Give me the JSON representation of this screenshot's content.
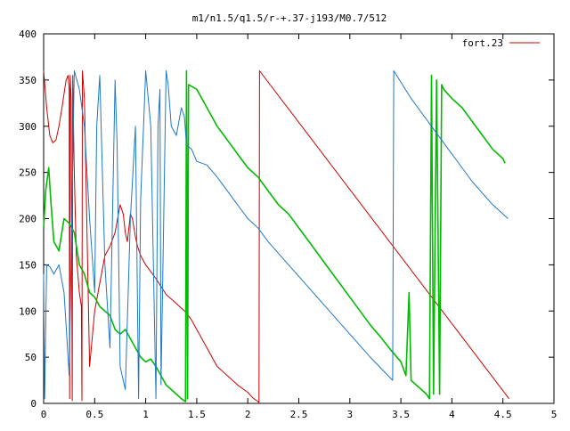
{
  "chart_data": {
    "type": "line",
    "title": "m1/n1.5/q1.5/r-+.37-j193/M0.7/512",
    "xlabel": "",
    "ylabel": "",
    "xlim": [
      0,
      5
    ],
    "ylim": [
      0,
      400
    ],
    "xticks": [
      "0",
      "0.5",
      "1",
      "1.5",
      "2",
      "2.5",
      "3",
      "3.5",
      "4",
      "4.5",
      "5"
    ],
    "yticks": [
      "0",
      "50",
      "100",
      "150",
      "200",
      "250",
      "300",
      "350",
      "400"
    ],
    "grid": false,
    "legend_position": "top-right",
    "legend": [
      {
        "label": "fort.23",
        "color": "#cc0000"
      }
    ],
    "series": [
      {
        "name": "fort.23",
        "color": "#cc0000",
        "x": [
          0.0,
          0.03,
          0.06,
          0.09,
          0.12,
          0.15,
          0.18,
          0.2,
          0.22,
          0.24,
          0.25,
          0.255,
          0.26,
          0.27,
          0.28,
          0.285,
          0.29,
          0.3,
          0.32,
          0.35,
          0.37,
          0.375,
          0.38,
          0.4,
          0.45,
          0.5,
          0.55,
          0.6,
          0.65,
          0.7,
          0.75,
          0.78,
          0.8,
          0.82,
          0.84,
          0.85,
          0.87,
          0.9,
          0.92,
          0.95,
          1.0,
          1.1,
          1.2,
          1.3,
          1.35,
          1.4,
          1.45,
          1.5,
          1.6,
          1.7,
          1.8,
          1.9,
          2.0,
          2.05,
          2.1,
          2.11,
          2.115,
          4.56
        ],
        "y": [
          360,
          320,
          290,
          282,
          285,
          300,
          320,
          335,
          350,
          355,
          340,
          5,
          355,
          330,
          3,
          355,
          320,
          250,
          160,
          120,
          105,
          3,
          360,
          330,
          40,
          100,
          130,
          160,
          170,
          185,
          215,
          205,
          185,
          175,
          195,
          205,
          200,
          180,
          170,
          160,
          150,
          135,
          118,
          108,
          103,
          98,
          90,
          80,
          60,
          40,
          30,
          20,
          12,
          6,
          2,
          1,
          360,
          5
        ]
      },
      {
        "name": "",
        "color": "#00bb00",
        "x": [
          0.0,
          0.02,
          0.05,
          0.07,
          0.1,
          0.15,
          0.2,
          0.25,
          0.3,
          0.35,
          0.4,
          0.45,
          0.5,
          0.55,
          0.6,
          0.65,
          0.7,
          0.75,
          0.8,
          0.85,
          0.9,
          0.95,
          1.0,
          1.05,
          1.1,
          1.15,
          1.2,
          1.25,
          1.3,
          1.35,
          1.39,
          1.4,
          1.41,
          1.42,
          1.5,
          1.6,
          1.7,
          1.8,
          1.9,
          2.0,
          2.1,
          2.2,
          2.3,
          2.4,
          2.5,
          2.6,
          2.7,
          2.8,
          2.9,
          3.0,
          3.1,
          3.2,
          3.3,
          3.4,
          3.5,
          3.55,
          3.58,
          3.6,
          3.65,
          3.7,
          3.75,
          3.78,
          3.8,
          3.82,
          3.85,
          3.88,
          3.9,
          3.92,
          4.0,
          4.1,
          4.2,
          4.3,
          4.4,
          4.5,
          4.52
        ],
        "y": [
          190,
          230,
          255,
          220,
          175,
          165,
          200,
          195,
          185,
          150,
          140,
          120,
          115,
          105,
          100,
          95,
          80,
          75,
          80,
          70,
          60,
          50,
          45,
          48,
          40,
          30,
          20,
          15,
          10,
          5,
          2,
          360,
          5,
          345,
          340,
          320,
          300,
          285,
          270,
          255,
          245,
          230,
          215,
          205,
          190,
          175,
          160,
          145,
          130,
          115,
          100,
          85,
          72,
          58,
          45,
          30,
          120,
          25,
          20,
          15,
          10,
          5,
          355,
          10,
          350,
          10,
          345,
          340,
          330,
          320,
          305,
          290,
          275,
          265,
          260
        ]
      },
      {
        "name": "",
        "color": "#1e78c8",
        "x": [
          0.0,
          0.01,
          0.03,
          0.06,
          0.1,
          0.15,
          0.2,
          0.25,
          0.3,
          0.35,
          0.4,
          0.45,
          0.5,
          0.52,
          0.55,
          0.6,
          0.65,
          0.7,
          0.72,
          0.75,
          0.8,
          0.85,
          0.9,
          0.93,
          0.95,
          1.0,
          1.05,
          1.1,
          1.12,
          1.14,
          1.15,
          1.2,
          1.22,
          1.25,
          1.3,
          1.35,
          1.38,
          1.4,
          1.45,
          1.5,
          1.6,
          1.7,
          1.8,
          1.9,
          2.0,
          2.1,
          2.2,
          2.4,
          2.6,
          2.8,
          3.0,
          3.2,
          3.42,
          3.43,
          3.6,
          3.8,
          4.0,
          4.2,
          4.4,
          4.55
        ],
        "y": [
          140,
          5,
          150,
          148,
          140,
          150,
          120,
          30,
          360,
          340,
          300,
          200,
          120,
          300,
          355,
          150,
          60,
          350,
          280,
          40,
          15,
          200,
          300,
          5,
          220,
          360,
          300,
          5,
          300,
          340,
          20,
          360,
          345,
          300,
          290,
          320,
          310,
          280,
          275,
          262,
          258,
          245,
          230,
          215,
          200,
          190,
          175,
          150,
          125,
          100,
          75,
          50,
          25,
          360,
          330,
          300,
          270,
          240,
          215,
          200
        ]
      }
    ]
  }
}
